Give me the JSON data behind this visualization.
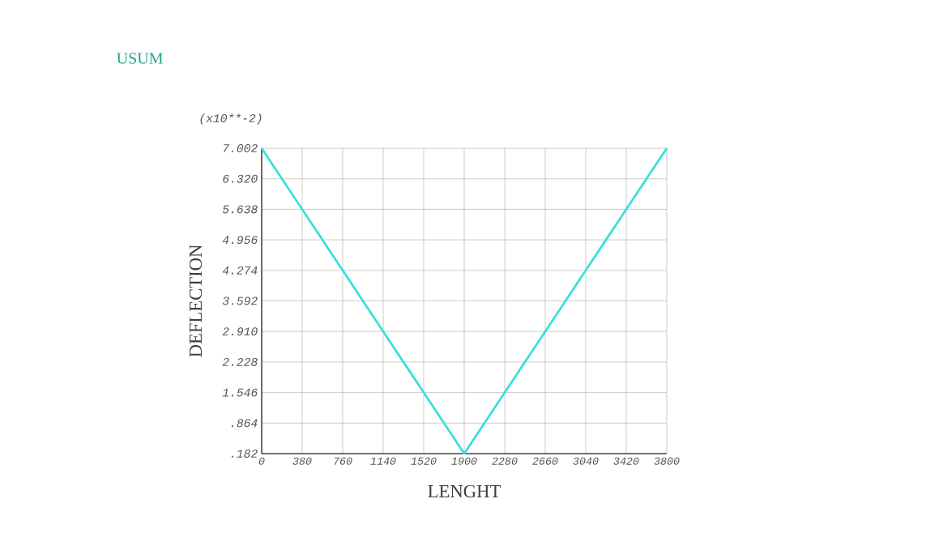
{
  "chart_data": {
    "type": "line",
    "title": "USUM",
    "xlabel": "LENGHT",
    "ylabel": "DEFLECTION",
    "annotations": [
      "(x10**-2)"
    ],
    "x": [
      0,
      380,
      760,
      1140,
      1520,
      1900,
      2280,
      2660,
      3040,
      3420,
      3800
    ],
    "series": [
      {
        "color": "#35e0da",
        "values": [
          7.002,
          5.638,
          4.274,
          2.91,
          1.546,
          0.182,
          1.546,
          2.91,
          4.274,
          5.638,
          7.002
        ]
      }
    ],
    "xlim": [
      0,
      3800
    ],
    "xticks": [
      0,
      380,
      760,
      1140,
      1520,
      1900,
      2280,
      2660,
      3040,
      3420,
      3800
    ],
    "ylim": [
      0.182,
      7.002
    ],
    "yticks": [
      {
        "value": 0.182,
        "label": ".182"
      },
      {
        "value": 0.864,
        "label": ".864"
      },
      {
        "value": 1.546,
        "label": "1.546"
      },
      {
        "value": 2.228,
        "label": "2.228"
      },
      {
        "value": 2.91,
        "label": "2.910"
      },
      {
        "value": 3.592,
        "label": "3.592"
      },
      {
        "value": 4.274,
        "label": "4.274"
      },
      {
        "value": 4.956,
        "label": "4.956"
      },
      {
        "value": 5.638,
        "label": "5.638"
      },
      {
        "value": 6.32,
        "label": "6.320"
      },
      {
        "value": 7.002,
        "label": "7.002"
      }
    ],
    "grid": true,
    "marker": "none",
    "line_style": "solid"
  }
}
